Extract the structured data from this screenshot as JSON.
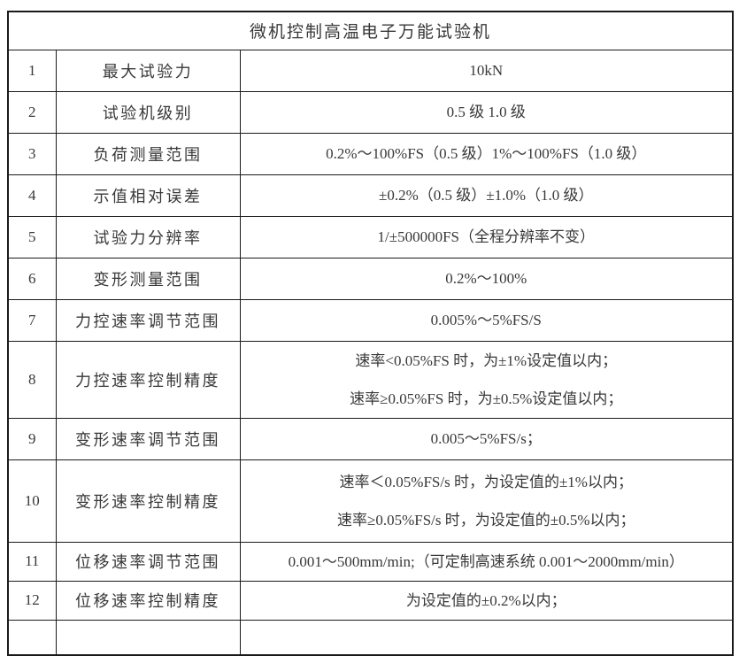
{
  "page": {
    "background_color": "#ffffff",
    "border_color": "#1a1a1a",
    "text_color": "#383838"
  },
  "table": {
    "title": "微机控制高温电子万能试验机",
    "rows": [
      {
        "no": "1",
        "label": "最大试验力",
        "lines": [
          "10kN"
        ]
      },
      {
        "no": "2",
        "label": "试验机级别",
        "lines": [
          "0.5 级 1.0 级"
        ]
      },
      {
        "no": "3",
        "label": "负荷测量范围",
        "lines": [
          "0.2%～100%FS（0.5 级）1%～100%FS（1.0 级）"
        ]
      },
      {
        "no": "4",
        "label": "示值相对误差",
        "lines": [
          "±0.2%（0.5 级）±1.0%（1.0 级）"
        ]
      },
      {
        "no": "5",
        "label": "试验力分辨率",
        "lines": [
          "1/±500000FS（全程分辨率不变）"
        ]
      },
      {
        "no": "6",
        "label": "变形测量范围",
        "lines": [
          "0.2%～100%"
        ]
      },
      {
        "no": "7",
        "label": "力控速率调节范围",
        "lines": [
          "0.005%～5%FS/S"
        ]
      },
      {
        "no": "8",
        "label": "力控速率控制精度",
        "lines": [
          "速率<0.05%FS 时，为±1%设定值以内；",
          "速率≥0.05%FS 时，为±0.5%设定值以内；"
        ]
      },
      {
        "no": "9",
        "label": "变形速率调节范围",
        "lines": [
          "0.005～5%FS/s；"
        ]
      },
      {
        "no": "10",
        "label": "变形速率控制精度",
        "lines": [
          "速率＜0.05%FS/s 时，为设定值的±1%以内；",
          "速率≥0.05%FS/s 时，为设定值的±0.5%以内；"
        ]
      },
      {
        "no": "11",
        "label": "位移速率调节范围",
        "lines": [
          "0.001～500mm/min;（可定制高速系统 0.001～2000mm/min）"
        ]
      },
      {
        "no": "12",
        "label": "位移速率控制精度",
        "lines": [
          "为设定值的±0.2%以内；"
        ]
      }
    ]
  }
}
